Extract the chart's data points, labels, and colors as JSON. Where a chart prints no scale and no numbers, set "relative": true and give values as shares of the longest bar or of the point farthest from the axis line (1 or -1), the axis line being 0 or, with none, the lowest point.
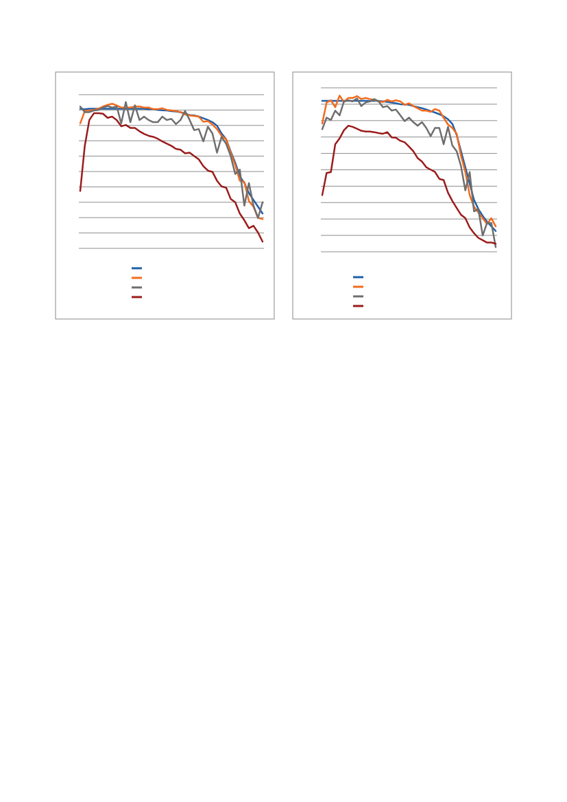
{
  "chart_data": [
    {
      "type": "line",
      "relative": true,
      "grid": true,
      "categories": [
        null,
        null,
        null,
        null,
        null,
        null,
        null,
        null,
        null,
        null,
        null,
        null,
        null,
        null,
        null,
        null,
        null,
        null,
        null,
        null,
        null,
        null,
        null,
        null,
        null,
        null,
        null,
        null,
        null,
        null,
        null,
        null,
        null,
        null,
        null,
        null,
        null,
        null,
        null,
        null,
        null
      ],
      "series": [
        {
          "color": "#1f5fa8",
          "values": [
            0.954,
            0.951,
            0.954,
            0.954,
            0.954,
            0.954,
            0.954,
            0.954,
            0.954,
            0.954,
            0.954,
            0.954,
            0.954,
            0.954,
            0.954,
            0.951,
            0.951,
            0.946,
            0.943,
            0.942,
            0.938,
            0.935,
            0.931,
            0.92,
            0.911,
            0.908,
            0.9,
            0.889,
            0.877,
            0.862,
            0.838,
            0.785,
            0.746,
            0.662,
            0.585,
            0.492,
            0.446,
            0.377,
            0.331,
            0.285,
            0.238
          ]
        },
        {
          "color": "#f26b1d",
          "values": [
            0.854,
            0.938,
            0.942,
            0.946,
            0.954,
            0.969,
            0.98,
            0.988,
            0.977,
            0.962,
            0.962,
            0.962,
            0.969,
            0.969,
            0.962,
            0.962,
            0.951,
            0.951,
            0.957,
            0.946,
            0.942,
            0.938,
            0.931,
            0.915,
            0.908,
            0.905,
            0.9,
            0.865,
            0.869,
            0.846,
            0.815,
            0.769,
            0.746,
            0.654,
            0.569,
            0.462,
            0.454,
            0.323,
            0.285,
            0.208,
            0.2
          ]
        },
        {
          "color": "#6e6e6e",
          "values": [
            0.969,
            0.931,
            0.931,
            0.942,
            0.946,
            0.962,
            0.972,
            0.962,
            0.969,
            0.854,
            1,
            0.862,
            0.977,
            0.877,
            0.9,
            0.877,
            0.862,
            0.862,
            0.9,
            0.877,
            0.885,
            0.849,
            0.877,
            0.938,
            0.877,
            0.808,
            0.815,
            0.731,
            0.831,
            0.785,
            0.654,
            0.762,
            0.715,
            0.631,
            0.508,
            0.538,
            0.292,
            0.446,
            0.292,
            0.208,
            0.315
          ]
        },
        {
          "color": "#9b1b1b",
          "values": [
            0.392,
            0.7,
            0.877,
            0.923,
            0.923,
            0.92,
            0.892,
            0.9,
            0.877,
            0.834,
            0.843,
            0.823,
            0.823,
            0.8,
            0.782,
            0.769,
            0.762,
            0.749,
            0.731,
            0.715,
            0.7,
            0.68,
            0.674,
            0.649,
            0.654,
            0.631,
            0.608,
            0.562,
            0.531,
            0.523,
            0.462,
            0.423,
            0.415,
            0.338,
            0.315,
            0.238,
            0.192,
            0.138,
            0.154,
            0.108,
            0.046
          ]
        }
      ]
    },
    {
      "type": "line",
      "relative": true,
      "grid": true,
      "categories": [
        null,
        null,
        null,
        null,
        null,
        null,
        null,
        null,
        null,
        null,
        null,
        null,
        null,
        null,
        null,
        null,
        null,
        null,
        null,
        null,
        null,
        null,
        null,
        null,
        null,
        null,
        null,
        null,
        null,
        null,
        null,
        null,
        null,
        null,
        null,
        null,
        null,
        null,
        null,
        null,
        null
      ],
      "series": [
        {
          "color": "#1f5fa8",
          "values": [
            0.966,
            0.967,
            0.967,
            0.967,
            0.967,
            0.966,
            0.966,
            0.966,
            0.966,
            0.966,
            0.966,
            0.966,
            0.966,
            0.966,
            0.963,
            0.96,
            0.956,
            0.951,
            0.945,
            0.944,
            0.941,
            0.933,
            0.926,
            0.919,
            0.911,
            0.901,
            0.892,
            0.881,
            0.867,
            0.849,
            0.819,
            0.748,
            0.644,
            0.541,
            0.437,
            0.333,
            0.274,
            0.23,
            0.193,
            0.163,
            0.133
          ]
        },
        {
          "color": "#f26b1d",
          "values": [
            0.822,
            0.956,
            0.97,
            0.926,
            1,
            0.959,
            0.985,
            0.985,
            0.997,
            0.978,
            0.985,
            0.978,
            0.973,
            0.963,
            0.959,
            0.973,
            0.963,
            0.97,
            0.963,
            0.941,
            0.951,
            0.933,
            0.919,
            0.904,
            0.904,
            0.896,
            0.914,
            0.904,
            0.859,
            0.815,
            0.793,
            0.756,
            0.615,
            0.511,
            0.363,
            0.289,
            0.252,
            0.215,
            0.178,
            0.215,
            0.163
          ]
        },
        {
          "color": "#6e6e6e",
          "values": [
            0.785,
            0.859,
            0.844,
            0.904,
            0.874,
            0.963,
            0.97,
            0.963,
            0.982,
            0.933,
            0.956,
            0.963,
            0.978,
            0.963,
            0.926,
            0.933,
            0.904,
            0.911,
            0.874,
            0.837,
            0.859,
            0.83,
            0.807,
            0.83,
            0.793,
            0.741,
            0.793,
            0.793,
            0.689,
            0.8,
            0.681,
            0.644,
            0.548,
            0.393,
            0.511,
            0.259,
            0.274,
            0.104,
            0.185,
            0.185,
            0.03
          ]
        },
        {
          "color": "#9b1b1b",
          "values": [
            0.363,
            0.504,
            0.511,
            0.689,
            0.726,
            0.778,
            0.807,
            0.8,
            0.788,
            0.775,
            0.77,
            0.77,
            0.766,
            0.76,
            0.756,
            0.766,
            0.733,
            0.73,
            0.711,
            0.701,
            0.674,
            0.644,
            0.6,
            0.578,
            0.541,
            0.526,
            0.511,
            0.467,
            0.459,
            0.378,
            0.326,
            0.281,
            0.237,
            0.215,
            0.156,
            0.119,
            0.089,
            0.074,
            0.059,
            0.059,
            0.052
          ]
        }
      ]
    }
  ]
}
